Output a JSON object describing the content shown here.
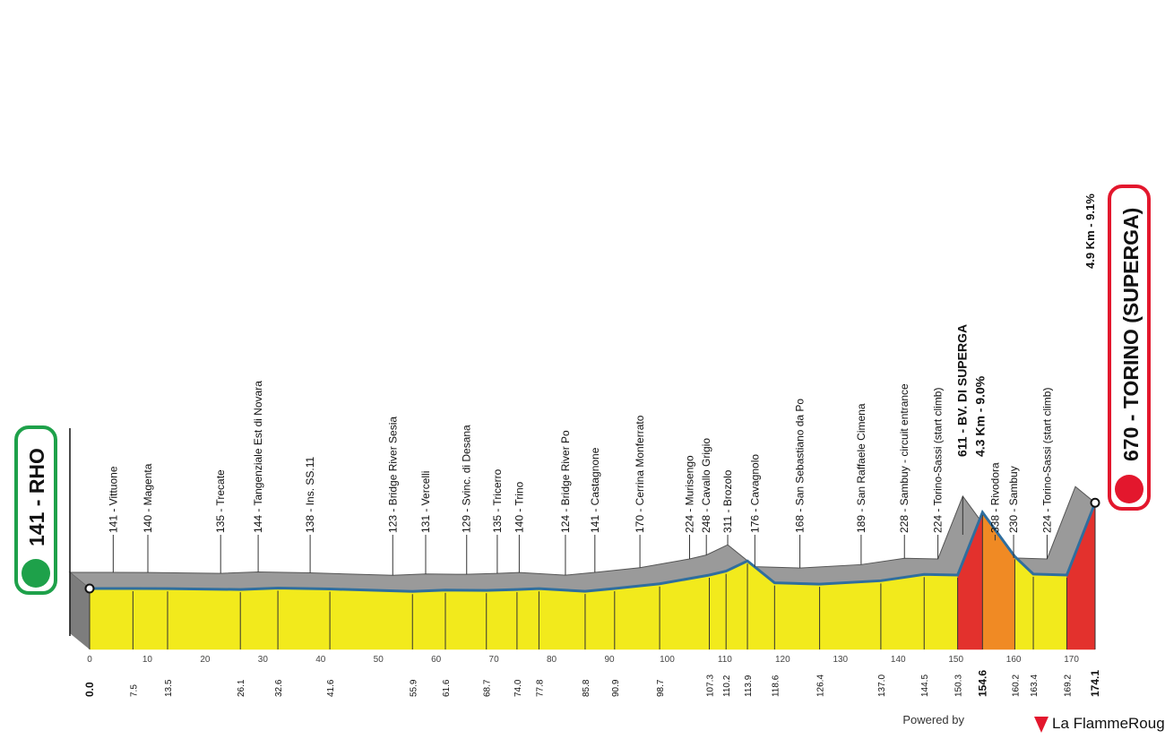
{
  "chart_data": {
    "type": "profile",
    "xlim": [
      0,
      174.1
    ],
    "xticks": [
      0,
      10,
      20,
      30,
      40,
      50,
      60,
      70,
      80,
      90,
      100,
      110,
      120,
      130,
      140,
      150,
      160,
      170
    ],
    "start": {
      "label": "141 - RHO",
      "elevation": 141,
      "km": {
        "value": 0,
        "label": "0.0"
      }
    },
    "waypoints": [
      {
        "label": "141 - Vittuone",
        "elevation": 141,
        "km": 7.5
      },
      {
        "label": "140 - Magenta",
        "elevation": 140,
        "km": 13.5
      },
      {
        "label": "135 - Trecate",
        "elevation": 135,
        "km": 26.1
      },
      {
        "label": "144 - Tangenziale Est di Novara",
        "elevation": 144,
        "km": 32.6
      },
      {
        "label": "138 - Ins. SS.11",
        "elevation": 138,
        "km": 41.6
      },
      {
        "label": "123 - Bridge River Sesia",
        "elevation": 123,
        "km": 55.9
      },
      {
        "label": "131 - Vercelli",
        "elevation": 131,
        "km": 61.6
      },
      {
        "label": "129 - Svinc. di Desana",
        "elevation": 129,
        "km": 68.7
      },
      {
        "label": "135 - Tricerro",
        "elevation": 135,
        "km": {
          "value": 74,
          "label": "74.0"
        }
      },
      {
        "label": "140 - Trino",
        "elevation": 140,
        "km": 77.8
      },
      {
        "label": "124 - Bridge River Po",
        "elevation": 124,
        "km": 85.8
      },
      {
        "label": "141 - Castagnone",
        "elevation": 141,
        "km": 90.9
      },
      {
        "label": "170 - Cerrina Monferrato",
        "elevation": 170,
        "km": 98.7
      },
      {
        "label": "224 - Murisengo",
        "elevation": 224,
        "km": 107.3
      },
      {
        "label": "248 - Cavallo Grigio",
        "elevation": 248,
        "km": 110.2
      },
      {
        "label": "311 - Brozolo",
        "elevation": 311,
        "km": 113.9
      },
      {
        "label": "176 - Cavagnolo",
        "elevation": 176,
        "km": 118.6
      },
      {
        "label": "168 - San Sebastiano da Po",
        "elevation": 168,
        "km": 126.4
      },
      {
        "label": "189 - San Raffaele Cimena",
        "elevation": 189,
        "km": {
          "value": 137,
          "label": "137.0"
        }
      },
      {
        "label": "228 - Sambuy - circuit entrance",
        "elevation": 228,
        "km": 144.5
      },
      {
        "label": "224 - Torino-Sassi (start climb)",
        "elevation": 224,
        "km": 150.3
      },
      {
        "label": "611 - BV. DI SUPERGA",
        "elevation": 611,
        "km": 154.6,
        "climb": "4.3 Km - 9.0%"
      },
      {
        "label": "338 - Rivodora",
        "elevation": 338,
        "km": 160.2
      },
      {
        "label": "230 - Sambuy",
        "elevation": 230,
        "km": 163.4
      },
      {
        "label": "224 - Torino-Sassi (start climb)",
        "elevation": 224,
        "km": 169.2
      }
    ],
    "finish": {
      "label": "670 - TORINO (SUPERGA)",
      "elevation": 670,
      "km": 174.1,
      "climb": "4.9 Km - 9.1%"
    },
    "footer": {
      "powered": "Powered by",
      "brand": "La FlammeRouge"
    }
  }
}
